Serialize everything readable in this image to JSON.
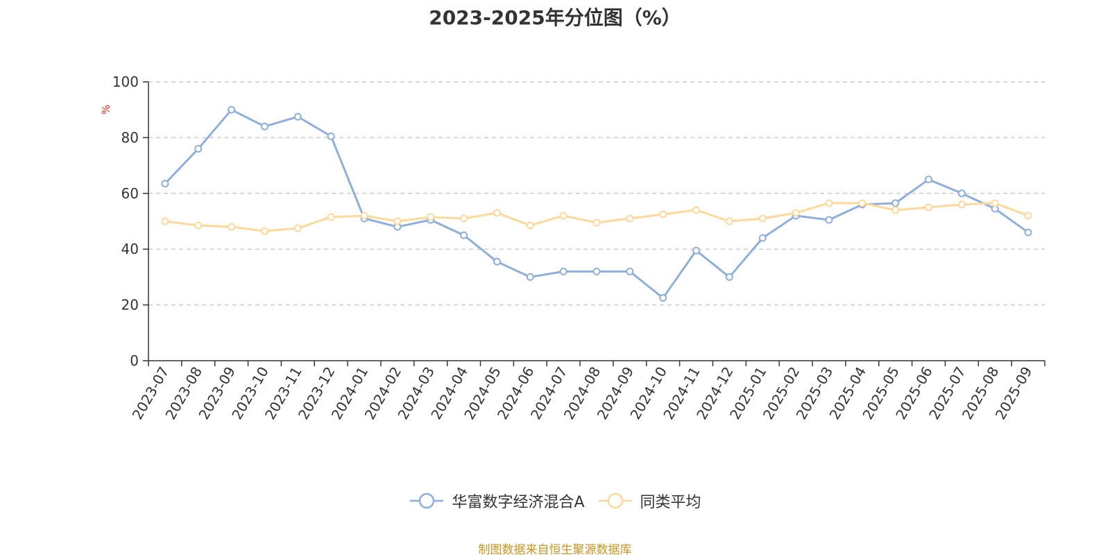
{
  "chart_data": {
    "type": "line",
    "title": "2023-2025年分位图（%）",
    "ylabel": "%",
    "xlabel": "",
    "ylim": [
      0,
      100
    ],
    "yticks": [
      0,
      20,
      40,
      60,
      80,
      100
    ],
    "grid": true,
    "legend_position": "bottom",
    "categories": [
      "2023-07",
      "2023-08",
      "2023-09",
      "2023-10",
      "2023-11",
      "2023-12",
      "2024-01",
      "2024-02",
      "2024-03",
      "2024-04",
      "2024-05",
      "2024-06",
      "2024-07",
      "2024-08",
      "2024-09",
      "2024-10",
      "2024-11",
      "2024-12",
      "2025-01",
      "2025-02",
      "2025-03",
      "2025-04",
      "2025-05",
      "2025-06",
      "2025-07",
      "2025-08",
      "2025-09"
    ],
    "series": [
      {
        "name": "华富数字经济混合A",
        "color": "#8eaedb",
        "values": [
          63.5,
          76,
          90,
          84,
          87.5,
          80.5,
          51,
          48,
          50.5,
          45,
          35.5,
          30,
          32,
          32,
          32,
          22.5,
          39.5,
          30,
          44,
          52,
          50.5,
          56,
          56.5,
          65,
          60,
          54.5,
          46
        ]
      },
      {
        "name": "同类平均",
        "color": "#fcd99a",
        "values": [
          50,
          48.5,
          48,
          46.5,
          47.5,
          51.5,
          52,
          50,
          51.5,
          51,
          53,
          48.5,
          52,
          49.5,
          51,
          52.5,
          54,
          50,
          51,
          53,
          56.5,
          56.5,
          54,
          55,
          56,
          56.5,
          52
        ]
      }
    ],
    "source": "制图数据来自恒生聚源数据库"
  }
}
